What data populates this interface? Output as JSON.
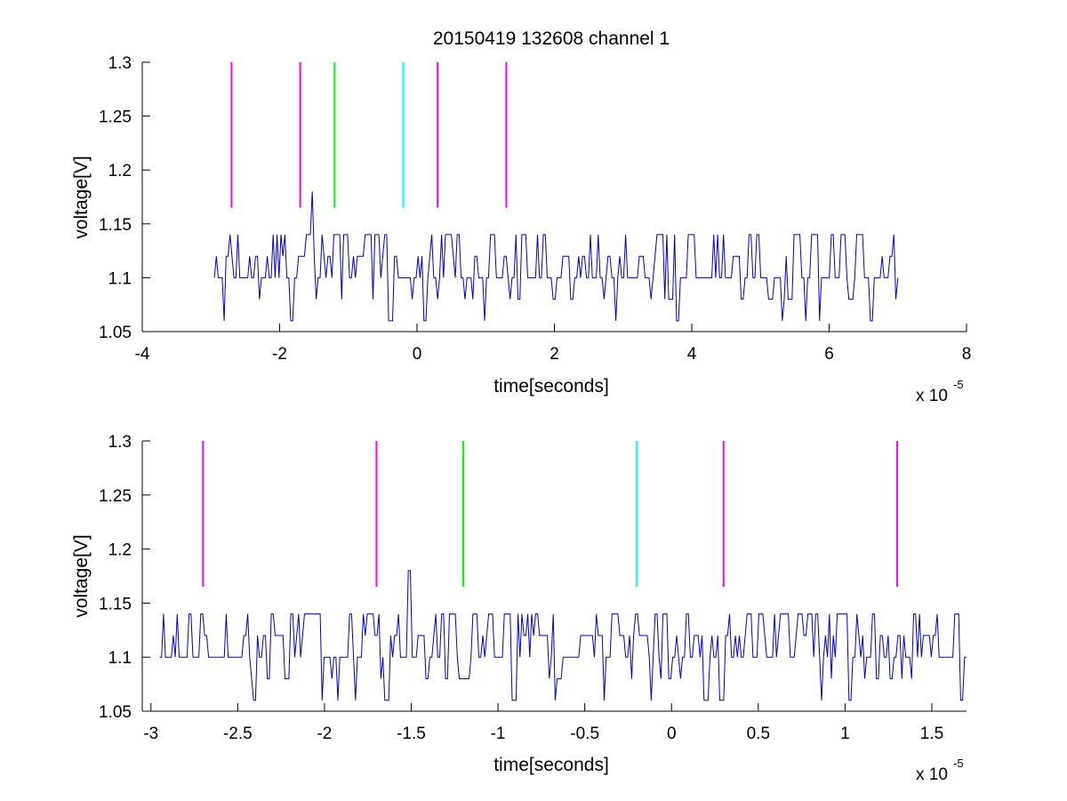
{
  "figure": {
    "title": "20150419 132608 channel 1",
    "background": "#ffffff"
  },
  "chart_data": [
    {
      "type": "line",
      "title": "20150419 132608 channel 1",
      "xlabel": "time[seconds]",
      "ylabel": "voltage[V]",
      "x_exponent_label": "x 10",
      "x_exponent": "-5",
      "xlim": [
        -4,
        8
      ],
      "ylim": [
        1.05,
        1.3
      ],
      "xticks": [
        -4,
        -2,
        0,
        2,
        4,
        6,
        8
      ],
      "xtick_labels": [
        "-4",
        "-2",
        "0",
        "2",
        "4",
        "6",
        "8"
      ],
      "yticks": [
        1.05,
        1.1,
        1.15,
        1.2,
        1.25,
        1.3
      ],
      "ytick_labels": [
        "1.05",
        "1.1",
        "1.15",
        "1.2",
        "1.25",
        "1.3"
      ],
      "grid": false,
      "markers": [
        {
          "x": -2.7,
          "color": "#ff00ff"
        },
        {
          "x": -1.7,
          "color": "#ff00ff"
        },
        {
          "x": -1.2,
          "color": "#00ff00"
        },
        {
          "x": -0.2,
          "color": "#00ffff"
        },
        {
          "x": 0.3,
          "color": "#ff00ff"
        },
        {
          "x": 1.3,
          "color": "#ff00ff"
        }
      ],
      "marker_range": [
        1.165,
        1.3
      ],
      "series": [
        {
          "color": "#0000cc",
          "x_range": [
            -2.95,
            7.0
          ],
          "baseline": 1.1,
          "levels": [
            1.06,
            1.08,
            1.1,
            1.12,
            1.14
          ],
          "peak": {
            "x": -1.52,
            "y": 1.18
          },
          "seed": 7
        }
      ]
    },
    {
      "type": "line",
      "xlabel": "time[seconds]",
      "ylabel": "voltage[V]",
      "x_exponent_label": "x 10",
      "x_exponent": "-5",
      "xlim": [
        -3.05,
        1.7
      ],
      "ylim": [
        1.05,
        1.3
      ],
      "xticks": [
        -3,
        -2.5,
        -2,
        -1.5,
        -1,
        -0.5,
        0,
        0.5,
        1,
        1.5
      ],
      "xtick_labels": [
        "-3",
        "-2.5",
        "-2",
        "-1.5",
        "-1",
        "-0.5",
        "0",
        "0.5",
        "1",
        "1.5"
      ],
      "yticks": [
        1.05,
        1.1,
        1.15,
        1.2,
        1.25,
        1.3
      ],
      "ytick_labels": [
        "1.05",
        "1.1",
        "1.15",
        "1.2",
        "1.25",
        "1.3"
      ],
      "grid": false,
      "markers": [
        {
          "x": -2.7,
          "color": "#ff00ff"
        },
        {
          "x": -1.7,
          "color": "#ff00ff"
        },
        {
          "x": -1.2,
          "color": "#00ff00"
        },
        {
          "x": -0.2,
          "color": "#00ffff"
        },
        {
          "x": 0.3,
          "color": "#ff00ff"
        },
        {
          "x": 1.3,
          "color": "#ff00ff"
        }
      ],
      "marker_range": [
        1.165,
        1.3
      ],
      "series": [
        {
          "color": "#0000cc",
          "x_range": [
            -2.95,
            1.7
          ],
          "baseline": 1.1,
          "levels": [
            1.06,
            1.08,
            1.1,
            1.12,
            1.14
          ],
          "peak": {
            "x": -1.52,
            "y": 1.18
          },
          "seed": 11
        }
      ]
    }
  ]
}
